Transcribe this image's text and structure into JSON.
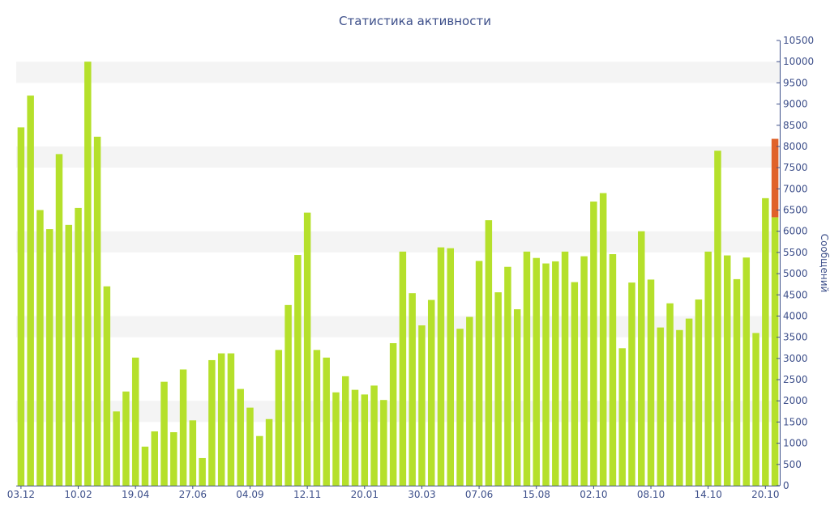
{
  "chart_data": {
    "type": "bar",
    "title": "Статистика активности",
    "ylabel": "Сообщений",
    "xlabel": "",
    "ylim": [
      0,
      10500
    ],
    "ytick_step": 500,
    "grid": "alternating horizontal bands",
    "x_tick_labels": [
      "03.12",
      "10.02",
      "19.04",
      "27.06",
      "04.09",
      "12.11",
      "20.01",
      "30.03",
      "07.06",
      "15.08",
      "02.10",
      "08.10",
      "14.10",
      "20.10"
    ],
    "x_tick_label_every": 6,
    "colors": {
      "bar": "#b5e02b",
      "highlight": "#e0622a",
      "text": "#3d4f8a",
      "band": "#f4f4f4",
      "axis": "#3d4f8a"
    },
    "values": [
      8450,
      9200,
      6500,
      6050,
      7820,
      6150,
      6550,
      10000,
      8230,
      4700,
      1750,
      2220,
      3020,
      920,
      1280,
      2450,
      1260,
      2740,
      1540,
      650,
      2960,
      3120,
      3120,
      2280,
      1840,
      1170,
      1570,
      3200,
      4260,
      5440,
      6440,
      3200,
      3020,
      2200,
      2580,
      2260,
      2150,
      2360,
      2020,
      3360,
      5520,
      4540,
      3780,
      4380,
      5620,
      5600,
      3700,
      3980,
      5300,
      6260,
      4560,
      5160,
      4160,
      5520,
      5370,
      5240,
      5290,
      5520,
      4800,
      5410,
      6700,
      6900,
      5460,
      3240,
      4790,
      6000,
      4860,
      3730,
      4300,
      3670,
      3940,
      4390,
      5520,
      7900,
      5430,
      4870,
      5380,
      3600,
      6780,
      6330
    ],
    "highlight": {
      "index": 79,
      "base": 6330,
      "top": 8180
    }
  }
}
